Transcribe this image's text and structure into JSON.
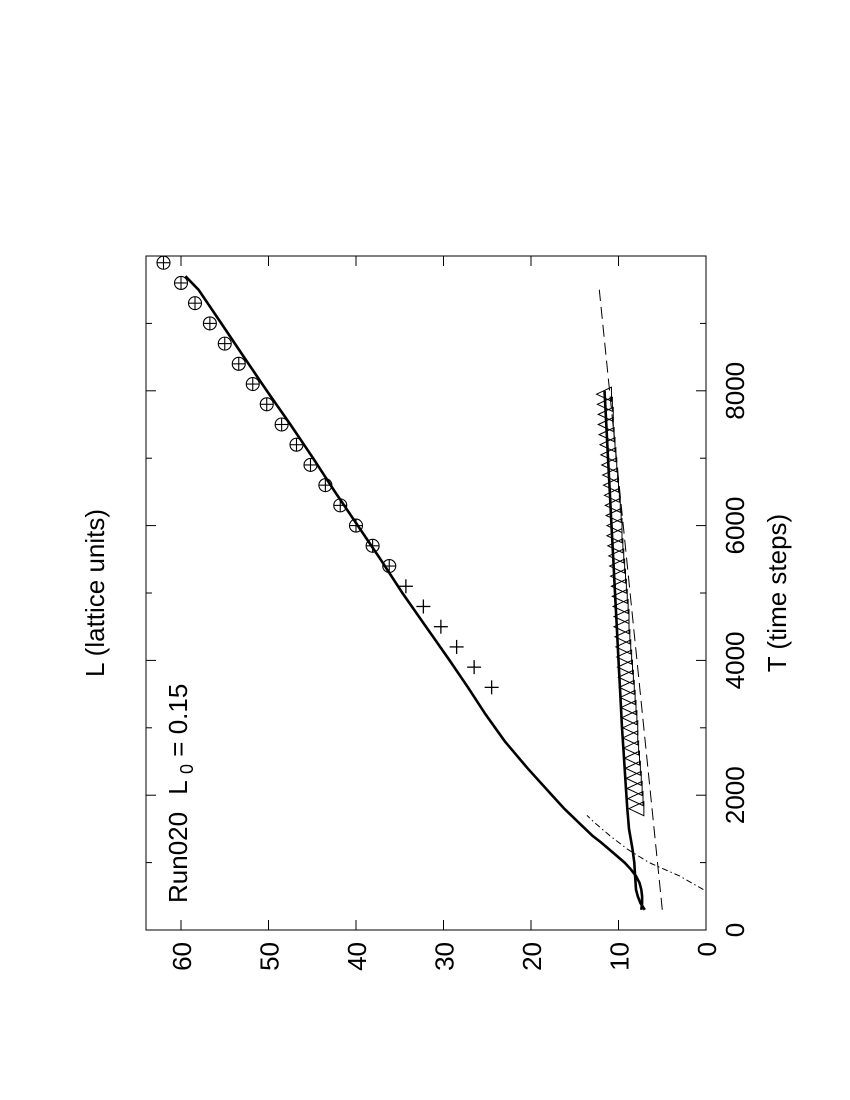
{
  "chart_data": {
    "type": "line",
    "orientation": "rotated-90-counterclockwise",
    "annotation": {
      "prefix": "Run020",
      "var": "L",
      "sub": "0",
      "suffix": " = 0.15"
    },
    "xlabel": "T (time steps)",
    "ylabel": "L (lattice units)",
    "xlim": [
      0,
      10000
    ],
    "ylim": [
      0,
      64
    ],
    "xticks": [
      0,
      2000,
      4000,
      6000,
      8000
    ],
    "xticks_minor": [
      1000,
      3000,
      5000,
      7000,
      9000
    ],
    "yticks": [
      0,
      10,
      20,
      30,
      40,
      50,
      60
    ],
    "grid": false,
    "series": [
      {
        "style": "solid-thick",
        "x": [
          300,
          400,
          500,
          600,
          700,
          800,
          900,
          1000,
          1100,
          1200,
          1300,
          1400,
          1600,
          1800,
          2000,
          2400,
          2800,
          3200,
          3600,
          4000,
          4500,
          5000,
          5500,
          6000,
          6500,
          7000,
          7500,
          8000,
          8500,
          9000,
          9500,
          9700
        ],
        "y": [
          7.4,
          7.3,
          7.3,
          7.4,
          7.6,
          8.0,
          8.6,
          9.3,
          10.2,
          11.1,
          12.0,
          13.0,
          14.6,
          16.2,
          17.6,
          20.4,
          23.0,
          25.2,
          27.2,
          29.3,
          32.0,
          34.7,
          37.2,
          39.8,
          42.4,
          44.9,
          47.5,
          50.2,
          52.8,
          55.4,
          58.0,
          59.5
        ]
      },
      {
        "style": "solid-thick",
        "x": [
          300,
          400,
          500,
          600,
          800,
          1000,
          1200,
          1500,
          1800,
          2200,
          2600,
          3000,
          3500,
          4000,
          4500,
          5000,
          5500,
          6000,
          6500,
          7000,
          7500,
          8000
        ],
        "y": [
          7.0,
          7.5,
          7.8,
          8.0,
          8.1,
          8.2,
          8.4,
          8.8,
          9.0,
          9.2,
          9.4,
          9.6,
          9.8,
          10.0,
          10.2,
          10.4,
          10.6,
          10.8,
          11.0,
          11.2,
          11.4,
          11.6
        ]
      },
      {
        "style": "dashed",
        "x": [
          300,
          9500
        ],
        "y": [
          5.0,
          12.2
        ]
      },
      {
        "style": "dash-dot",
        "x": [
          600,
          800,
          1000,
          1200,
          1400,
          1600,
          1700
        ],
        "y": [
          0.3,
          3.0,
          6.5,
          9.0,
          11.0,
          12.8,
          13.6
        ]
      },
      {
        "style": "markers",
        "marker": "plus",
        "x": [
          3600,
          3900,
          4200,
          4500,
          4800,
          5100
        ],
        "y": [
          24.5,
          26.5,
          28.5,
          30.3,
          32.3,
          34.3
        ]
      },
      {
        "style": "markers",
        "marker": "circle-plus",
        "x": [
          5400,
          5700,
          6000,
          6300,
          6600,
          6900,
          7200,
          7500,
          7800,
          8100,
          8400,
          8700,
          9000,
          9300,
          9600,
          9900
        ],
        "y": [
          36.2,
          38.1,
          40.0,
          41.8,
          43.5,
          45.2,
          46.8,
          48.5,
          50.2,
          51.8,
          53.4,
          55.0,
          56.7,
          58.4,
          60.0,
          62.0
        ]
      },
      {
        "style": "markers",
        "marker": "triangle-left",
        "x": [
          1800,
          1950,
          2100,
          2250,
          2400,
          2550,
          2700,
          2850,
          3000,
          3150,
          3300,
          3450,
          3600,
          3750,
          3900,
          4050,
          4200,
          4350,
          4500,
          4650,
          4800,
          4950,
          5100,
          5250,
          5400,
          5550,
          5700,
          5850,
          6000,
          6150,
          6300,
          6450,
          6600,
          6750,
          6900,
          7050,
          7200,
          7350,
          7500,
          7650,
          7800,
          7950
        ],
        "y": [
          7.9,
          8.0,
          8.1,
          8.2,
          8.3,
          8.4,
          8.5,
          8.6,
          8.6,
          8.7,
          8.8,
          8.9,
          9.0,
          9.1,
          9.2,
          9.3,
          9.4,
          9.5,
          9.6,
          9.6,
          9.7,
          9.8,
          9.9,
          10.0,
          10.1,
          10.2,
          10.3,
          10.4,
          10.4,
          10.5,
          10.6,
          10.7,
          10.8,
          10.9,
          11.0,
          11.1,
          11.2,
          11.3,
          11.4,
          11.4,
          11.5,
          11.6
        ]
      }
    ]
  }
}
